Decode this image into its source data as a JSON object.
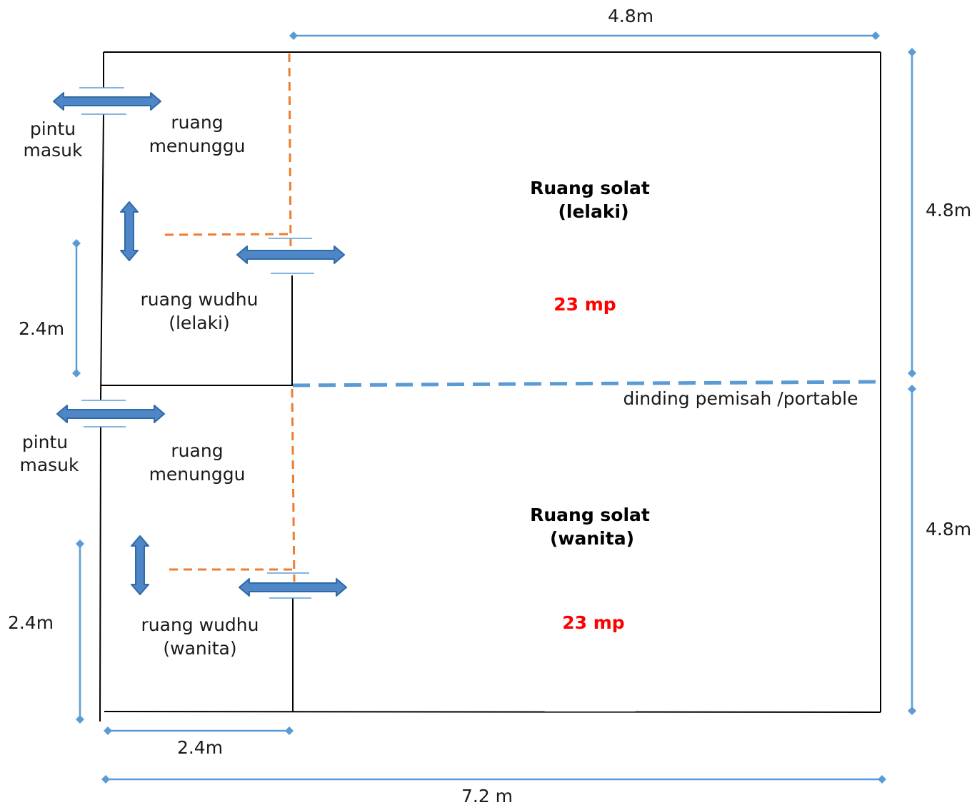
{
  "colors": {
    "wall": "#000000",
    "dimension": "#5b9bd5",
    "arrow_fill": "#4f86c6",
    "arrow_stroke": "#2e6aa8",
    "orange_dash": "#ed7d31",
    "blue_dash": "#5b9bd5",
    "area_text": "#ff0000"
  },
  "dimensions": {
    "top_width": "4.8m",
    "right_upper": "4.8m",
    "right_lower": "4.8m",
    "left_upper": "2.4m",
    "left_lower": "2.4m",
    "bottom_small": "2.4m",
    "bottom_total": "7.2 m"
  },
  "upper": {
    "door_label_1": "pintu",
    "door_label_2": "masuk",
    "waiting_1": "ruang",
    "waiting_2": "menunggu",
    "ablution_1": "ruang wudhu",
    "ablution_2": "(lelaki)",
    "prayer_1": "Ruang solat",
    "prayer_2": "(lelaki)",
    "area": "23 mp"
  },
  "lower": {
    "door_label_1": "pintu",
    "door_label_2": "masuk",
    "waiting_1": "ruang",
    "waiting_2": "menunggu",
    "ablution_1": "ruang wudhu",
    "ablution_2": "(wanita)",
    "prayer_1": "Ruang solat",
    "prayer_2": "(wanita)",
    "area": "23 mp"
  },
  "partition_label": "dinding pemisah /portable"
}
